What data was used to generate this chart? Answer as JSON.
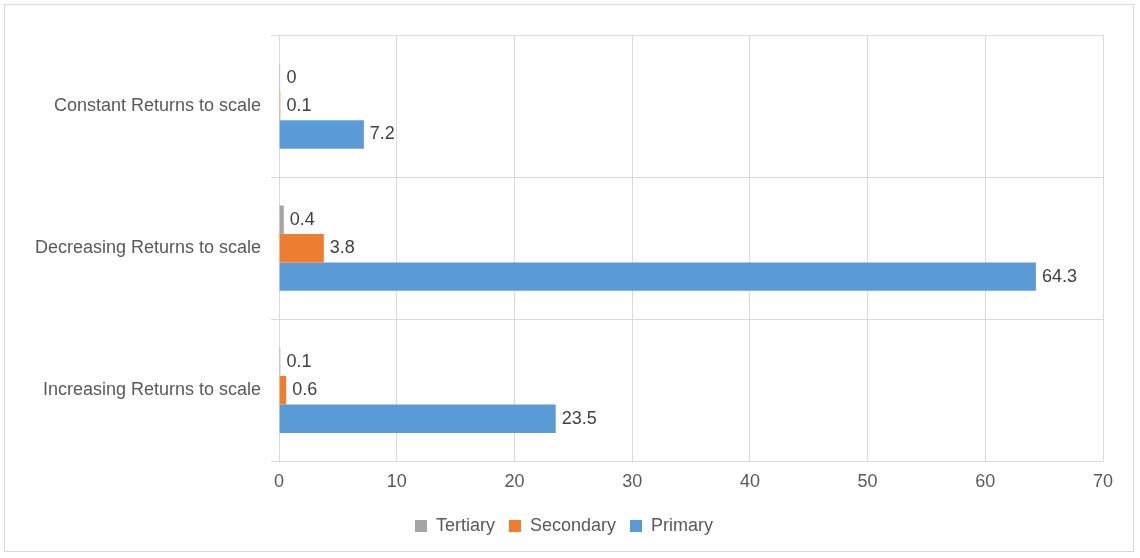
{
  "chart_data": {
    "type": "bar",
    "orientation": "horizontal",
    "categories": [
      "Constant Returns to scale",
      "Decreasing Returns to scale",
      "Increasing Returns to scale"
    ],
    "series": [
      {
        "name": "Tertiary",
        "color": "#a5a5a5",
        "values": [
          0,
          0.4,
          0.1
        ]
      },
      {
        "name": "Secondary",
        "color": "#ed7d31",
        "values": [
          0.1,
          3.8,
          0.6
        ]
      },
      {
        "name": "Primary",
        "color": "#5b9bd5",
        "values": [
          7.2,
          64.3,
          23.5
        ]
      }
    ],
    "xlim": [
      0,
      70
    ],
    "xticks": [
      0,
      10,
      20,
      30,
      40,
      50,
      60,
      70
    ],
    "grid": true,
    "legend": "bottom",
    "data_labels": true
  }
}
